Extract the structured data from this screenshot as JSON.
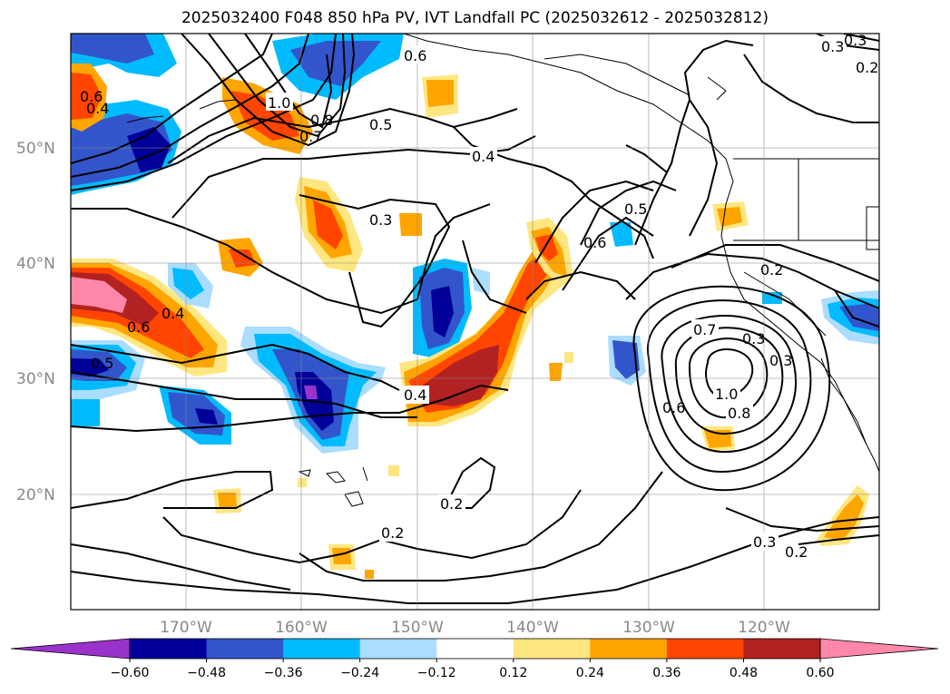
{
  "title": "2025032400 F048 850 hPa PV, IVT Landfall PC (2025032612 - 2025032812)",
  "lat_labels": [
    "50°N",
    "40°N",
    "30°N",
    "20°N"
  ],
  "lon_labels": [
    "170°W",
    "160°W",
    "150°W",
    "140°W",
    "130°W",
    "120°W"
  ],
  "colorbar": {
    "ticks": [
      "−0.60",
      "−0.48",
      "−0.36",
      "−0.24",
      "−0.12",
      "0.12",
      "0.24",
      "0.36",
      "0.48",
      "0.60"
    ],
    "colors": [
      "#9933cc",
      "#000099",
      "#3355cc",
      "#00bbff",
      "#aaddff",
      "#ffffff",
      "#ffe680",
      "#ffa500",
      "#ff4500",
      "#b22222",
      "#ff88aa"
    ],
    "extend": "both"
  },
  "contour_labels": [
    "0.6",
    "1.0",
    "0.8",
    "0.7",
    "0.5",
    "0.4",
    "0.3",
    "0.6",
    "0.5",
    "0.6",
    "0.4",
    "0.6",
    "0.5",
    "0.4",
    "0.3",
    "0.2",
    "0.7",
    "0.3",
    "0.3",
    "1.0",
    "0.8",
    "0.6",
    "0.2",
    "0.2",
    "0.3",
    "0.2",
    "0.3",
    "0.2",
    "0.4"
  ]
}
